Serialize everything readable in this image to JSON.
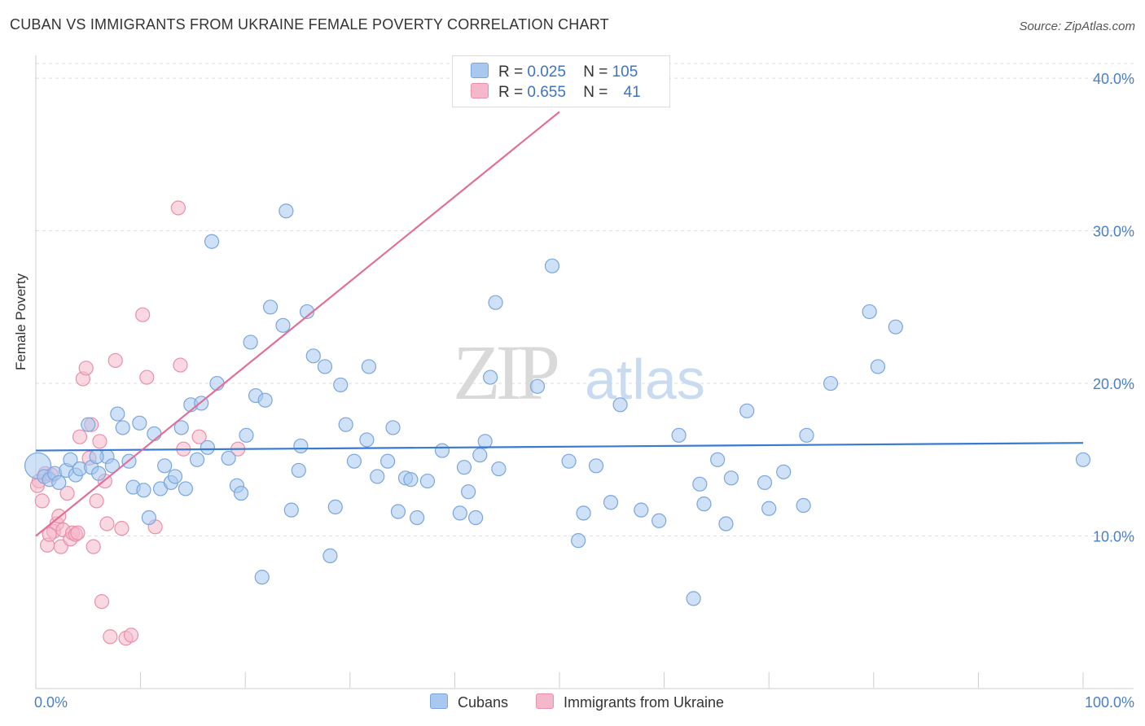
{
  "title": "CUBAN VS IMMIGRANTS FROM UKRAINE FEMALE POVERTY CORRELATION CHART",
  "source": "Source: ZipAtlas.com",
  "watermark": {
    "zip": "ZIP",
    "atlas": "atlas"
  },
  "stats": {
    "series1": {
      "r_label": "R =",
      "r_value": "0.025",
      "n_label": "N =",
      "n_value": "105"
    },
    "series2": {
      "r_label": "R =",
      "r_value": "0.655",
      "n_label": "N =",
      "n_value": "41"
    }
  },
  "colors": {
    "blue_fill": "#a8c8f0",
    "blue_stroke": "#7aa6dd",
    "blue_line": "#3a7ad0",
    "pink_fill": "#f5b8cb",
    "pink_stroke": "#eb8fab",
    "pink_line": "#e0709a",
    "axis_text": "#4a7fc8",
    "grid": "#dddddd"
  },
  "chart_data": {
    "type": "scatter",
    "title": "CUBAN VS IMMIGRANTS FROM UKRAINE FEMALE POVERTY CORRELATION CHART",
    "ylabel": "Female Poverty",
    "xlabel": "",
    "xlim": [
      0,
      100
    ],
    "ylim": [
      0,
      41.5
    ],
    "x_tick_labels": [
      "0.0%",
      "100.0%"
    ],
    "y_ticks": [
      10,
      20,
      30,
      40
    ],
    "y_tick_labels": [
      "10.0%",
      "20.0%",
      "30.0%",
      "40.0%"
    ],
    "grid": "horizontal dashed",
    "legend_position": "bottom",
    "series": [
      {
        "name": "Cubans",
        "trend": {
          "x": [
            0,
            100
          ],
          "y": [
            15.6,
            16.1
          ]
        },
        "points": [
          [
            0.2,
            14.6
          ],
          [
            0.8,
            13.9
          ],
          [
            1.3,
            13.7
          ],
          [
            1.8,
            14.1
          ],
          [
            2.2,
            13.5
          ],
          [
            2.9,
            14.3
          ],
          [
            3.3,
            15.0
          ],
          [
            3.8,
            14.0
          ],
          [
            4.2,
            14.4
          ],
          [
            5.0,
            17.3
          ],
          [
            5.3,
            14.5
          ],
          [
            6.0,
            14.1
          ],
          [
            6.8,
            15.2
          ],
          [
            7.3,
            14.6
          ],
          [
            7.8,
            18.0
          ],
          [
            8.3,
            17.1
          ],
          [
            8.9,
            14.9
          ],
          [
            9.3,
            13.2
          ],
          [
            9.9,
            17.4
          ],
          [
            10.3,
            13.0
          ],
          [
            10.8,
            11.2
          ],
          [
            11.3,
            16.7
          ],
          [
            11.9,
            13.1
          ],
          [
            12.3,
            14.6
          ],
          [
            12.9,
            13.5
          ],
          [
            13.3,
            13.9
          ],
          [
            13.9,
            17.1
          ],
          [
            14.3,
            13.1
          ],
          [
            14.8,
            18.6
          ],
          [
            15.4,
            15.0
          ],
          [
            15.8,
            18.7
          ],
          [
            16.4,
            15.8
          ],
          [
            16.8,
            29.3
          ],
          [
            17.3,
            20.0
          ],
          [
            18.4,
            15.1
          ],
          [
            19.2,
            13.3
          ],
          [
            19.6,
            12.8
          ],
          [
            20.1,
            16.6
          ],
          [
            20.5,
            22.7
          ],
          [
            21.0,
            19.2
          ],
          [
            21.6,
            7.3
          ],
          [
            21.9,
            18.9
          ],
          [
            22.4,
            25.0
          ],
          [
            23.6,
            23.8
          ],
          [
            23.9,
            31.3
          ],
          [
            24.4,
            11.7
          ],
          [
            25.1,
            14.3
          ],
          [
            25.3,
            15.9
          ],
          [
            25.9,
            24.7
          ],
          [
            26.5,
            21.8
          ],
          [
            27.6,
            21.1
          ],
          [
            28.1,
            8.7
          ],
          [
            28.6,
            11.9
          ],
          [
            29.1,
            19.9
          ],
          [
            29.6,
            17.3
          ],
          [
            30.4,
            14.9
          ],
          [
            31.6,
            16.3
          ],
          [
            31.8,
            21.1
          ],
          [
            32.6,
            13.9
          ],
          [
            33.6,
            14.9
          ],
          [
            34.1,
            17.1
          ],
          [
            34.6,
            11.6
          ],
          [
            35.3,
            13.8
          ],
          [
            35.8,
            13.7
          ],
          [
            36.4,
            11.2
          ],
          [
            37.4,
            13.6
          ],
          [
            38.8,
            15.6
          ],
          [
            40.5,
            11.5
          ],
          [
            40.9,
            14.5
          ],
          [
            41.3,
            12.9
          ],
          [
            42.0,
            11.2
          ],
          [
            42.4,
            15.3
          ],
          [
            42.9,
            16.2
          ],
          [
            43.4,
            20.4
          ],
          [
            43.9,
            25.3
          ],
          [
            44.2,
            14.4
          ],
          [
            47.9,
            19.8
          ],
          [
            49.3,
            27.7
          ],
          [
            50.9,
            14.9
          ],
          [
            51.8,
            9.7
          ],
          [
            52.3,
            11.5
          ],
          [
            53.5,
            14.6
          ],
          [
            54.9,
            12.2
          ],
          [
            55.8,
            18.6
          ],
          [
            57.8,
            11.7
          ],
          [
            59.5,
            11.0
          ],
          [
            61.4,
            16.6
          ],
          [
            62.8,
            5.9
          ],
          [
            63.4,
            13.4
          ],
          [
            63.8,
            12.1
          ],
          [
            65.1,
            15.0
          ],
          [
            65.9,
            10.8
          ],
          [
            66.4,
            13.8
          ],
          [
            67.9,
            18.2
          ],
          [
            69.6,
            13.5
          ],
          [
            70.0,
            11.8
          ],
          [
            71.4,
            14.2
          ],
          [
            73.3,
            12.0
          ],
          [
            73.6,
            16.6
          ],
          [
            75.9,
            20.0
          ],
          [
            79.6,
            24.7
          ],
          [
            80.4,
            21.1
          ],
          [
            82.1,
            23.7
          ],
          [
            100.0,
            15.0
          ],
          [
            5.8,
            15.2
          ]
        ]
      },
      {
        "name": "Immigrants from Ukraine",
        "trend": {
          "x": [
            0,
            50
          ],
          "y": [
            10.0,
            37.8
          ]
        },
        "points": [
          [
            0.3,
            13.6
          ],
          [
            0.6,
            12.3
          ],
          [
            0.9,
            14.1
          ],
          [
            1.1,
            9.4
          ],
          [
            1.5,
            14.0
          ],
          [
            1.7,
            10.3
          ],
          [
            2.0,
            10.8
          ],
          [
            2.2,
            11.3
          ],
          [
            2.4,
            9.3
          ],
          [
            2.6,
            10.4
          ],
          [
            3.0,
            12.8
          ],
          [
            3.3,
            9.8
          ],
          [
            3.5,
            10.2
          ],
          [
            3.8,
            10.1
          ],
          [
            4.0,
            10.2
          ],
          [
            4.2,
            16.5
          ],
          [
            4.5,
            20.3
          ],
          [
            4.8,
            21.0
          ],
          [
            5.1,
            15.1
          ],
          [
            5.3,
            17.3
          ],
          [
            5.5,
            9.3
          ],
          [
            5.8,
            12.3
          ],
          [
            6.1,
            16.2
          ],
          [
            6.3,
            5.7
          ],
          [
            6.6,
            13.6
          ],
          [
            6.8,
            10.8
          ],
          [
            7.1,
            3.4
          ],
          [
            7.6,
            21.5
          ],
          [
            8.2,
            10.5
          ],
          [
            8.6,
            3.3
          ],
          [
            9.1,
            3.5
          ],
          [
            10.2,
            24.5
          ],
          [
            10.6,
            20.4
          ],
          [
            11.4,
            10.6
          ],
          [
            13.6,
            31.5
          ],
          [
            13.8,
            21.2
          ],
          [
            14.1,
            15.7
          ],
          [
            15.6,
            16.5
          ],
          [
            19.3,
            15.7
          ],
          [
            0.15,
            13.3
          ],
          [
            1.3,
            10.1
          ]
        ]
      }
    ]
  }
}
